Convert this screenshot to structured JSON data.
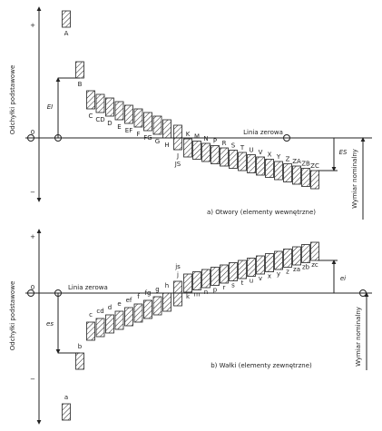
{
  "top": {
    "axis_label": "Odchyłki podstawowe",
    "plus": "+",
    "zero": "0",
    "minus": "−",
    "zero_line_label": "Linia zerowa",
    "deviation_a": "EI",
    "deviation_b": "ES",
    "nominal_label": "Wymiar nominalny",
    "caption": "a) Otwory (elementy wewnętrzne)",
    "letters": [
      "A",
      "B",
      "C",
      "CD",
      "D",
      "E",
      "EF",
      "F",
      "FG",
      "G",
      "H",
      "J",
      "JS",
      "K",
      "M",
      "N",
      "P",
      "R",
      "S",
      "T",
      "U",
      "V",
      "X",
      "Y",
      "Z",
      "ZA",
      "ZB",
      "ZC"
    ]
  },
  "bottom": {
    "axis_label": "Odchyłki podstawowe",
    "plus": "+",
    "zero": "0",
    "minus": "−",
    "zero_line_label": "Linia zerowa",
    "deviation_a": "es",
    "deviation_b": "ei",
    "nominal_label": "Wymiar nominalny",
    "caption": "b) Wałki (elementy zewnętrzne)",
    "letters": [
      "a",
      "b",
      "c",
      "cd",
      "d",
      "e",
      "ef",
      "f",
      "fg",
      "g",
      "h",
      "j",
      "js",
      "k",
      "m",
      "n",
      "p",
      "r",
      "s",
      "t",
      "u",
      "v",
      "x",
      "y",
      "z",
      "za",
      "zb",
      "zc"
    ]
  }
}
